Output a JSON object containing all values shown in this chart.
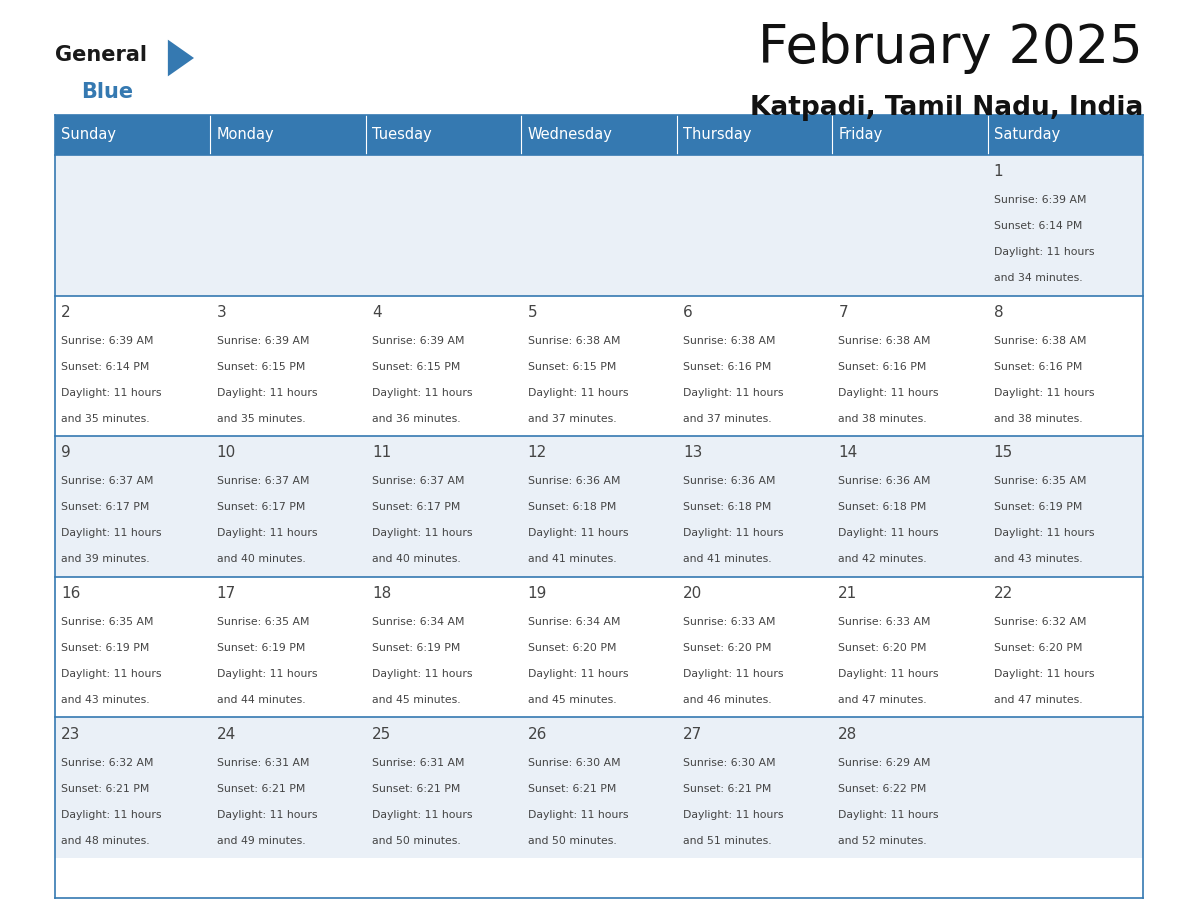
{
  "title": "February 2025",
  "subtitle": "Katpadi, Tamil Nadu, India",
  "header_color": "#3579b1",
  "header_text_color": "#ffffff",
  "days_of_week": [
    "Sunday",
    "Monday",
    "Tuesday",
    "Wednesday",
    "Thursday",
    "Friday",
    "Saturday"
  ],
  "background_color": "#ffffff",
  "cell_bg_even": "#eaf0f7",
  "cell_bg_odd": "#ffffff",
  "row_line_color": "#3579b1",
  "text_color": "#444444",
  "calendar": [
    [
      null,
      null,
      null,
      null,
      null,
      null,
      {
        "day": 1,
        "sunrise": "6:39 AM",
        "sunset": "6:14 PM",
        "daylight": "11 hours and 34 minutes."
      }
    ],
    [
      {
        "day": 2,
        "sunrise": "6:39 AM",
        "sunset": "6:14 PM",
        "daylight": "11 hours and 35 minutes."
      },
      {
        "day": 3,
        "sunrise": "6:39 AM",
        "sunset": "6:15 PM",
        "daylight": "11 hours and 35 minutes."
      },
      {
        "day": 4,
        "sunrise": "6:39 AM",
        "sunset": "6:15 PM",
        "daylight": "11 hours and 36 minutes."
      },
      {
        "day": 5,
        "sunrise": "6:38 AM",
        "sunset": "6:15 PM",
        "daylight": "11 hours and 37 minutes."
      },
      {
        "day": 6,
        "sunrise": "6:38 AM",
        "sunset": "6:16 PM",
        "daylight": "11 hours and 37 minutes."
      },
      {
        "day": 7,
        "sunrise": "6:38 AM",
        "sunset": "6:16 PM",
        "daylight": "11 hours and 38 minutes."
      },
      {
        "day": 8,
        "sunrise": "6:38 AM",
        "sunset": "6:16 PM",
        "daylight": "11 hours and 38 minutes."
      }
    ],
    [
      {
        "day": 9,
        "sunrise": "6:37 AM",
        "sunset": "6:17 PM",
        "daylight": "11 hours and 39 minutes."
      },
      {
        "day": 10,
        "sunrise": "6:37 AM",
        "sunset": "6:17 PM",
        "daylight": "11 hours and 40 minutes."
      },
      {
        "day": 11,
        "sunrise": "6:37 AM",
        "sunset": "6:17 PM",
        "daylight": "11 hours and 40 minutes."
      },
      {
        "day": 12,
        "sunrise": "6:36 AM",
        "sunset": "6:18 PM",
        "daylight": "11 hours and 41 minutes."
      },
      {
        "day": 13,
        "sunrise": "6:36 AM",
        "sunset": "6:18 PM",
        "daylight": "11 hours and 41 minutes."
      },
      {
        "day": 14,
        "sunrise": "6:36 AM",
        "sunset": "6:18 PM",
        "daylight": "11 hours and 42 minutes."
      },
      {
        "day": 15,
        "sunrise": "6:35 AM",
        "sunset": "6:19 PM",
        "daylight": "11 hours and 43 minutes."
      }
    ],
    [
      {
        "day": 16,
        "sunrise": "6:35 AM",
        "sunset": "6:19 PM",
        "daylight": "11 hours and 43 minutes."
      },
      {
        "day": 17,
        "sunrise": "6:35 AM",
        "sunset": "6:19 PM",
        "daylight": "11 hours and 44 minutes."
      },
      {
        "day": 18,
        "sunrise": "6:34 AM",
        "sunset": "6:19 PM",
        "daylight": "11 hours and 45 minutes."
      },
      {
        "day": 19,
        "sunrise": "6:34 AM",
        "sunset": "6:20 PM",
        "daylight": "11 hours and 45 minutes."
      },
      {
        "day": 20,
        "sunrise": "6:33 AM",
        "sunset": "6:20 PM",
        "daylight": "11 hours and 46 minutes."
      },
      {
        "day": 21,
        "sunrise": "6:33 AM",
        "sunset": "6:20 PM",
        "daylight": "11 hours and 47 minutes."
      },
      {
        "day": 22,
        "sunrise": "6:32 AM",
        "sunset": "6:20 PM",
        "daylight": "11 hours and 47 minutes."
      }
    ],
    [
      {
        "day": 23,
        "sunrise": "6:32 AM",
        "sunset": "6:21 PM",
        "daylight": "11 hours and 48 minutes."
      },
      {
        "day": 24,
        "sunrise": "6:31 AM",
        "sunset": "6:21 PM",
        "daylight": "11 hours and 49 minutes."
      },
      {
        "day": 25,
        "sunrise": "6:31 AM",
        "sunset": "6:21 PM",
        "daylight": "11 hours and 50 minutes."
      },
      {
        "day": 26,
        "sunrise": "6:30 AM",
        "sunset": "6:21 PM",
        "daylight": "11 hours and 50 minutes."
      },
      {
        "day": 27,
        "sunrise": "6:30 AM",
        "sunset": "6:21 PM",
        "daylight": "11 hours and 51 minutes."
      },
      {
        "day": 28,
        "sunrise": "6:29 AM",
        "sunset": "6:22 PM",
        "daylight": "11 hours and 52 minutes."
      },
      null
    ]
  ],
  "logo_general_color": "#1a1a1a",
  "logo_blue_color": "#3579b1",
  "logo_triangle_color": "#3579b1"
}
